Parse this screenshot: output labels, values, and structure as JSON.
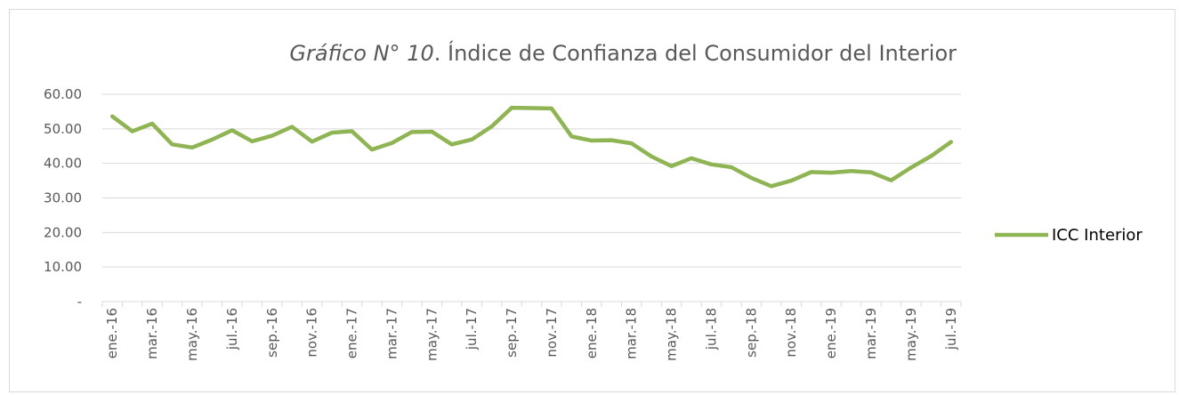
{
  "chart_data": {
    "type": "line",
    "title_label": "Gráfico N° 10",
    "title": ". Índice de Confianza del Consumidor del Interior",
    "categories": [
      "ene.-16",
      null,
      "mar.-16",
      null,
      "may.-16",
      null,
      "jul.-16",
      null,
      "sep.-16",
      null,
      "nov.-16",
      null,
      "ene.-17",
      null,
      "mar.-17",
      null,
      "may.-17",
      null,
      "jul.-17",
      null,
      "sep.-17",
      null,
      "nov.-17",
      null,
      "ene.-18",
      null,
      "mar.-18",
      null,
      "may.-18",
      null,
      "jul.-18",
      null,
      "sep.-18",
      null,
      "nov.-18",
      null,
      "ene.-19",
      null,
      "mar.-19",
      null,
      "may.-19",
      null,
      "jul.-19"
    ],
    "series": [
      {
        "name": "ICC Interior",
        "color": "#8fb454",
        "values": [
          53.6,
          49.3,
          51.5,
          45.5,
          44.6,
          46.9,
          49.6,
          46.4,
          48.0,
          50.6,
          46.3,
          48.9,
          49.3,
          44.0,
          45.9,
          49.1,
          49.2,
          45.5,
          46.9,
          50.7,
          56.1,
          56.0,
          55.9,
          47.8,
          46.6,
          46.7,
          45.8,
          42.0,
          39.2,
          41.5,
          39.7,
          38.9,
          35.8,
          33.4,
          35.0,
          37.5,
          37.3,
          37.8,
          37.4,
          35.1,
          38.8,
          42.1,
          46.2
        ]
      }
    ],
    "ylim": [
      0,
      60
    ],
    "yticks": [
      {
        "value": 0,
        "label": "-"
      },
      {
        "value": 10,
        "label": "10.00"
      },
      {
        "value": 20,
        "label": "20.00"
      },
      {
        "value": 30,
        "label": "30.00"
      },
      {
        "value": 40,
        "label": "40.00"
      },
      {
        "value": 50,
        "label": "50.00"
      },
      {
        "value": 60,
        "label": "60.00"
      }
    ],
    "grid": true,
    "legend": "right"
  }
}
